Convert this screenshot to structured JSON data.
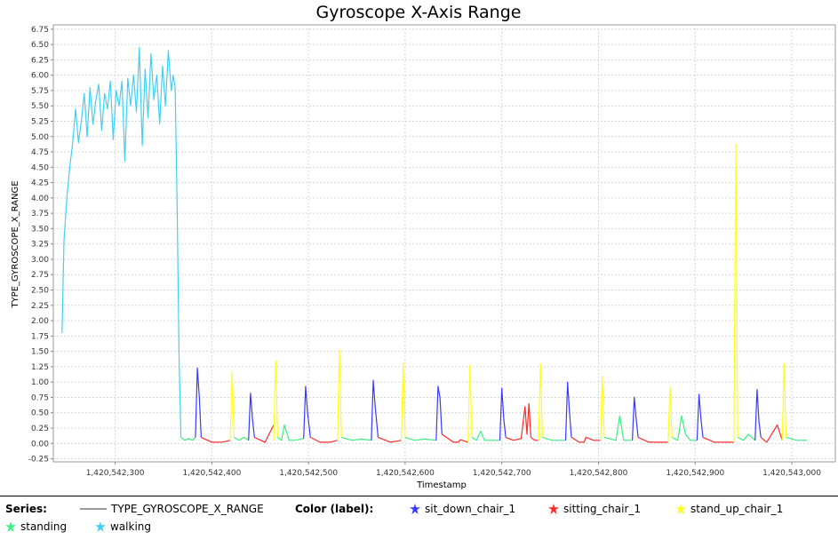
{
  "chart_data": {
    "type": "line",
    "title": "Gyroscope X-Axis Range",
    "xlabel": "Timestamp",
    "ylabel": "TYPE_GYROSCOPE_X_RANGE",
    "xlim": [
      1420542236,
      1420543045
    ],
    "ylim": [
      -0.3,
      6.82
    ],
    "x_ticks": [
      1420542300,
      1420542400,
      1420542500,
      1420542600,
      1420542700,
      1420542800,
      1420542900,
      1420543000
    ],
    "x_tick_labels": [
      "1,420,542,300",
      "1,420,542,400",
      "1,420,542,500",
      "1,420,542,600",
      "1,420,542,700",
      "1,420,542,800",
      "1,420,542,900",
      "1,420,543,000"
    ],
    "y_ticks": [
      -0.25,
      0,
      0.25,
      0.5,
      0.75,
      1,
      1.25,
      1.5,
      1.75,
      2,
      2.25,
      2.5,
      2.75,
      3,
      3.25,
      3.5,
      3.75,
      4,
      4.25,
      4.5,
      4.75,
      5,
      5.25,
      5.5,
      5.75,
      6,
      6.25,
      6.5,
      6.75
    ],
    "y_tick_labels": [
      "-0.25",
      "0.00",
      "0.25",
      "0.50",
      "0.75",
      "1.00",
      "1.25",
      "1.50",
      "1.75",
      "2.00",
      "2.25",
      "2.50",
      "2.75",
      "3.00",
      "3.25",
      "3.50",
      "3.75",
      "4.00",
      "4.25",
      "4.50",
      "4.75",
      "5.00",
      "5.25",
      "5.50",
      "5.75",
      "6.00",
      "6.25",
      "6.50",
      "6.75"
    ],
    "grid": true,
    "series": [
      {
        "name": "TYPE_GYROSCOPE_X_RANGE",
        "segments": [
          {
            "label": "walking",
            "x": [
              1420542245,
              1420542247,
              1420542250,
              1420542253,
              1420542256,
              1420542259,
              1420542262,
              1420542265,
              1420542268,
              1420542271,
              1420542274,
              1420542277,
              1420542280,
              1420542283,
              1420542286,
              1420542289,
              1420542292,
              1420542295,
              1420542298,
              1420542301,
              1420542304,
              1420542307,
              1420542310,
              1420542313,
              1420542316,
              1420542319,
              1420542322,
              1420542325,
              1420542328,
              1420542331,
              1420542334,
              1420542337,
              1420542340,
              1420542343,
              1420542346,
              1420542349,
              1420542352,
              1420542355,
              1420542358,
              1420542360,
              1420542362,
              1420542364
            ],
            "y": [
              1.8,
              3.3,
              4.0,
              4.5,
              4.9,
              5.45,
              4.9,
              5.25,
              5.7,
              5.0,
              5.8,
              5.2,
              5.6,
              5.85,
              5.1,
              5.7,
              5.45,
              5.9,
              4.95,
              5.75,
              5.5,
              5.9,
              4.6,
              5.95,
              5.5,
              6.0,
              5.4,
              6.45,
              4.85,
              6.1,
              5.3,
              6.35,
              5.6,
              6.0,
              5.2,
              6.15,
              5.5,
              6.4,
              5.75,
              6.0,
              5.8,
              4.0
            ]
          },
          {
            "label": "walking",
            "x": [
              1420542364,
              1420542366,
              1420542368
            ],
            "y": [
              4.0,
              1.5,
              0.1
            ]
          },
          {
            "label": "standing",
            "x": [
              1420542368,
              1420542372,
              1420542376,
              1420542380,
              1420542383
            ],
            "y": [
              0.1,
              0.05,
              0.08,
              0.05,
              0.1
            ]
          },
          {
            "label": "sit_down_chair_1",
            "x": [
              1420542383,
              1420542385,
              1420542387,
              1420542389
            ],
            "y": [
              0.1,
              1.23,
              0.75,
              0.1
            ]
          },
          {
            "label": "sitting_chair_1",
            "x": [
              1420542389,
              1420542400,
              1420542410,
              1420542419
            ],
            "y": [
              0.1,
              0.02,
              0.02,
              0.05
            ]
          },
          {
            "label": "stand_up_chair_1",
            "x": [
              1420542419,
              1420542421,
              1420542423
            ],
            "y": [
              0.05,
              1.18,
              0.1
            ]
          },
          {
            "label": "standing",
            "x": [
              1420542423,
              1420542428,
              1420542433,
              1420542438
            ],
            "y": [
              0.1,
              0.05,
              0.1,
              0.05
            ]
          },
          {
            "label": "sit_down_chair_1",
            "x": [
              1420542438,
              1420542440,
              1420542442,
              1420542444
            ],
            "y": [
              0.05,
              0.82,
              0.4,
              0.1
            ]
          },
          {
            "label": "sitting_chair_1",
            "x": [
              1420542444,
              1420542455,
              1420542464
            ],
            "y": [
              0.1,
              0.02,
              0.3
            ]
          },
          {
            "label": "stand_up_chair_1",
            "x": [
              1420542464,
              1420542466,
              1420542468
            ],
            "y": [
              0.05,
              1.35,
              0.1
            ]
          },
          {
            "label": "standing",
            "x": [
              1420542468,
              1420542472,
              1420542475,
              1420542480,
              1420542486,
              1420542495
            ],
            "y": [
              0.1,
              0.05,
              0.3,
              0.05,
              0.05,
              0.08
            ]
          },
          {
            "label": "sit_down_chair_1",
            "x": [
              1420542495,
              1420542497,
              1420542499,
              1420542502
            ],
            "y": [
              0.08,
              0.93,
              0.5,
              0.1
            ]
          },
          {
            "label": "sitting_chair_1",
            "x": [
              1420542502,
              1420542512,
              1420542522,
              1420542530
            ],
            "y": [
              0.1,
              0.02,
              0.02,
              0.05
            ]
          },
          {
            "label": "stand_up_chair_1",
            "x": [
              1420542530,
              1420542532,
              1420542534
            ],
            "y": [
              0.05,
              1.52,
              0.1
            ]
          },
          {
            "label": "standing",
            "x": [
              1420542534,
              1420542545,
              1420542555,
              1420542565
            ],
            "y": [
              0.1,
              0.05,
              0.07,
              0.05
            ]
          },
          {
            "label": "sit_down_chair_1",
            "x": [
              1420542565,
              1420542567,
              1420542569,
              1420542572
            ],
            "y": [
              0.05,
              1.03,
              0.6,
              0.1
            ]
          },
          {
            "label": "sitting_chair_1",
            "x": [
              1420542572,
              1420542585,
              1420542596
            ],
            "y": [
              0.1,
              0.02,
              0.05
            ]
          },
          {
            "label": "stand_up_chair_1",
            "x": [
              1420542596,
              1420542598,
              1420542600
            ],
            "y": [
              0.05,
              1.32,
              0.1
            ]
          },
          {
            "label": "standing",
            "x": [
              1420542600,
              1420542610,
              1420542620,
              1420542632
            ],
            "y": [
              0.1,
              0.05,
              0.07,
              0.05
            ]
          },
          {
            "label": "sit_down_chair_1",
            "x": [
              1420542632,
              1420542634,
              1420542636,
              1420542638
            ],
            "y": [
              0.05,
              0.93,
              0.75,
              0.15
            ]
          },
          {
            "label": "sitting_chair_1",
            "x": [
              1420542638,
              1420542650,
              1420542655,
              1420542657,
              1420542665
            ],
            "y": [
              0.15,
              0.02,
              0.02,
              0.06,
              0.02
            ]
          },
          {
            "label": "stand_up_chair_1",
            "x": [
              1420542665,
              1420542667,
              1420542669
            ],
            "y": [
              0.02,
              1.28,
              0.1
            ]
          },
          {
            "label": "standing",
            "x": [
              1420542669,
              1420542674,
              1420542678,
              1420542682,
              1420542686,
              1420542698
            ],
            "y": [
              0.1,
              0.05,
              0.2,
              0.05,
              0.05,
              0.05
            ]
          },
          {
            "label": "sit_down_chair_1",
            "x": [
              1420542698,
              1420542700,
              1420542702,
              1420542704
            ],
            "y": [
              0.05,
              0.9,
              0.4,
              0.1
            ]
          },
          {
            "label": "sitting_chair_1",
            "x": [
              1420542704,
              1420542712,
              1420542720,
              1420542724,
              1420542726,
              1420542728,
              1420542730,
              1420542734,
              1420542738
            ],
            "y": [
              0.1,
              0.05,
              0.08,
              0.6,
              0.15,
              0.65,
              0.1,
              0.05,
              0.05
            ]
          },
          {
            "label": "stand_up_chair_1",
            "x": [
              1420542738,
              1420542740,
              1420542742
            ],
            "y": [
              0.05,
              1.3,
              0.1
            ]
          },
          {
            "label": "standing",
            "x": [
              1420542742,
              1420542752,
              1420542762,
              1420542766
            ],
            "y": [
              0.1,
              0.05,
              0.05,
              0.05
            ]
          },
          {
            "label": "sit_down_chair_1",
            "x": [
              1420542766,
              1420542768,
              1420542770,
              1420542772
            ],
            "y": [
              0.05,
              1.0,
              0.5,
              0.1
            ]
          },
          {
            "label": "sitting_chair_1",
            "x": [
              1420542772,
              1420542780,
              1420542785,
              1420542787,
              1420542795,
              1420542802
            ],
            "y": [
              0.1,
              0.02,
              0.02,
              0.1,
              0.05,
              0.05
            ]
          },
          {
            "label": "stand_up_chair_1",
            "x": [
              1420542802,
              1420542804,
              1420542806
            ],
            "y": [
              0.05,
              1.1,
              0.1
            ]
          },
          {
            "label": "standing",
            "x": [
              1420542806,
              1420542818,
              1420542822,
              1420542826,
              1420542835
            ],
            "y": [
              0.1,
              0.05,
              0.45,
              0.05,
              0.05
            ]
          },
          {
            "label": "sit_down_chair_1",
            "x": [
              1420542835,
              1420542837,
              1420542839,
              1420542841
            ],
            "y": [
              0.05,
              0.75,
              0.4,
              0.1
            ]
          },
          {
            "label": "sitting_chair_1",
            "x": [
              1420542841,
              1420542852,
              1420542862,
              1420542872
            ],
            "y": [
              0.1,
              0.02,
              0.02,
              0.02
            ]
          },
          {
            "label": "stand_up_chair_1",
            "x": [
              1420542872,
              1420542874,
              1420542876
            ],
            "y": [
              0.02,
              0.92,
              0.1
            ]
          },
          {
            "label": "standing",
            "x": [
              1420542876,
              1420542882,
              1420542886,
              1420542890,
              1420542895,
              1420542902
            ],
            "y": [
              0.1,
              0.05,
              0.45,
              0.15,
              0.05,
              0.05
            ]
          },
          {
            "label": "sit_down_chair_1",
            "x": [
              1420542902,
              1420542904,
              1420542906,
              1420542908
            ],
            "y": [
              0.05,
              0.8,
              0.4,
              0.1
            ]
          },
          {
            "label": "sitting_chair_1",
            "x": [
              1420542908,
              1420542920,
              1420542930,
              1420542940
            ],
            "y": [
              0.1,
              0.02,
              0.02,
              0.02
            ]
          },
          {
            "label": "stand_up_chair_1",
            "x": [
              1420542940,
              1420542942,
              1420542944
            ],
            "y": [
              0.02,
              4.88,
              0.1
            ]
          },
          {
            "label": "standing",
            "x": [
              1420542944,
              1420542950,
              1420542955,
              1420542962
            ],
            "y": [
              0.1,
              0.05,
              0.15,
              0.05
            ]
          },
          {
            "label": "sit_down_chair_1",
            "x": [
              1420542962,
              1420542964,
              1420542966,
              1420542968
            ],
            "y": [
              0.05,
              0.88,
              0.35,
              0.1
            ]
          },
          {
            "label": "sitting_chair_1",
            "x": [
              1420542968,
              1420542974,
              1420542985,
              1420542990
            ],
            "y": [
              0.1,
              0.02,
              0.3,
              0.05
            ]
          },
          {
            "label": "stand_up_chair_1",
            "x": [
              1420542990,
              1420542992,
              1420542994
            ],
            "y": [
              0.05,
              1.3,
              0.1
            ]
          },
          {
            "label": "standing",
            "x": [
              1420542994,
              1420543005,
              1420543016
            ],
            "y": [
              0.1,
              0.05,
              0.05
            ]
          }
        ]
      }
    ]
  },
  "legend": {
    "series_heading": "Series:",
    "series_name": "TYPE_GYROSCOPE_X_RANGE",
    "color_heading": "Color (label):",
    "labels": [
      {
        "name": "sit_down_chair_1",
        "color": "#3a3aff"
      },
      {
        "name": "sitting_chair_1",
        "color": "#ff2a2a"
      },
      {
        "name": "stand_up_chair_1",
        "color": "#ffff1a"
      },
      {
        "name": "standing",
        "color": "#3af07e"
      },
      {
        "name": "walking",
        "color": "#40d0f6"
      }
    ]
  }
}
